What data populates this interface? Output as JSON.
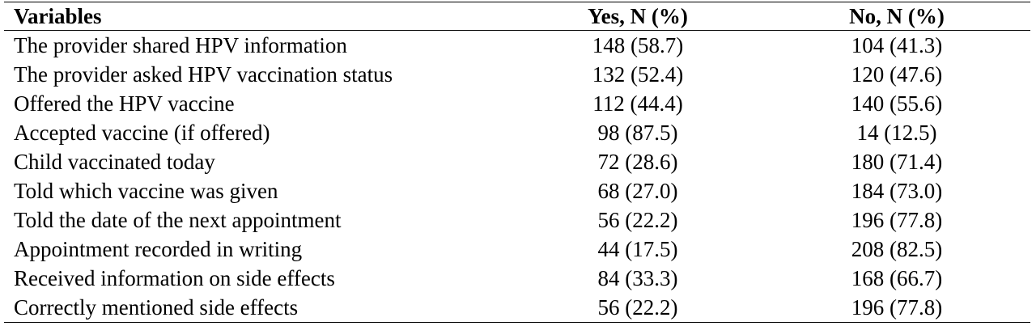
{
  "table": {
    "headers": {
      "variables": "Variables",
      "yes": "Yes, N (%)",
      "no": "No, N (%)"
    },
    "rows": [
      {
        "variable": "The provider shared HPV information",
        "yes": "148 (58.7)",
        "no": "104 (41.3)"
      },
      {
        "variable": "The provider asked HPV vaccination status",
        "yes": "132 (52.4)",
        "no": "120 (47.6)"
      },
      {
        "variable": "Offered the HPV vaccine",
        "yes": "112 (44.4)",
        "no": "140 (55.6)"
      },
      {
        "variable": "Accepted vaccine (if offered)",
        "yes": "98 (87.5)",
        "no": "14 (12.5)"
      },
      {
        "variable": "Child vaccinated today",
        "yes": "72 (28.6)",
        "no": "180 (71.4)"
      },
      {
        "variable": "Told which vaccine was given",
        "yes": "68 (27.0)",
        "no": "184 (73.0)"
      },
      {
        "variable": "Told the date of the next appointment",
        "yes": "56 (22.2)",
        "no": "196 (77.8)"
      },
      {
        "variable": "Appointment recorded in writing",
        "yes": "44 (17.5)",
        "no": "208 (82.5)"
      },
      {
        "variable": "Received information on side effects",
        "yes": "84 (33.3)",
        "no": "168 (66.7)"
      },
      {
        "variable": "Correctly mentioned side effects",
        "yes": "56 (22.2)",
        "no": "196 (77.8)"
      }
    ]
  }
}
